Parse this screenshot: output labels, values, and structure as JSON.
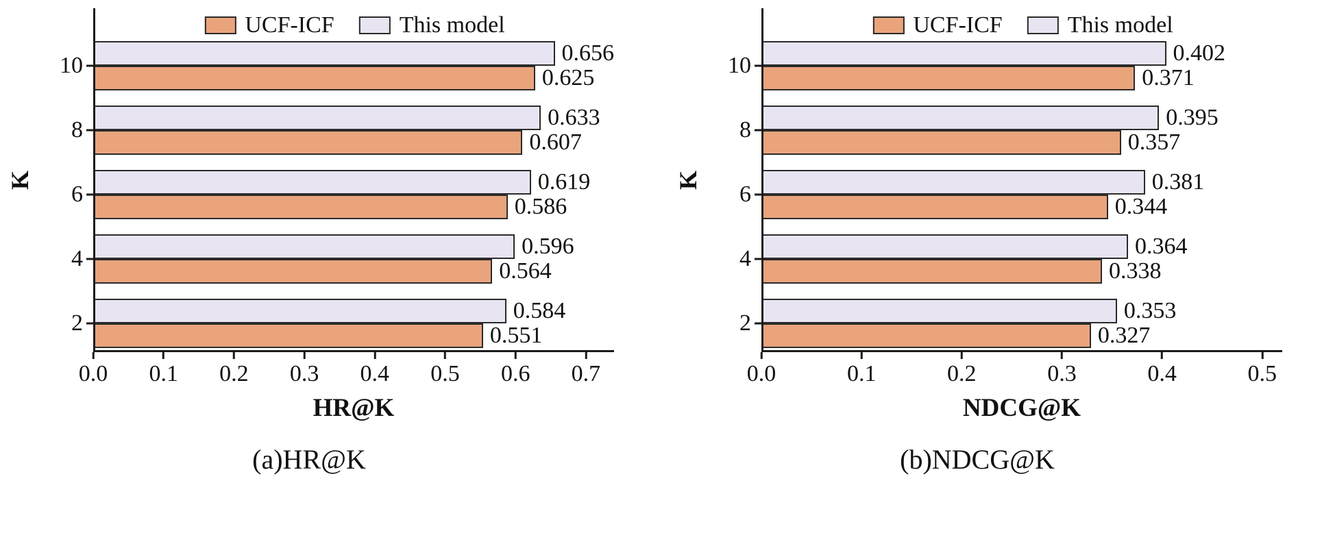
{
  "page": {
    "background": "#ffffff"
  },
  "chart_data": [
    {
      "type": "bar",
      "orientation": "horizontal",
      "title": "",
      "xlabel": "HR@K",
      "ylabel": "K",
      "caption": "(a)HR@K",
      "categories": [
        "2",
        "4",
        "6",
        "8",
        "10"
      ],
      "series": [
        {
          "name": "UCF-ICF",
          "color": "#E9A47C",
          "values": [
            0.551,
            0.564,
            0.586,
            0.607,
            0.625
          ]
        },
        {
          "name": "This model",
          "color": "#E9E4F2",
          "values": [
            0.584,
            0.596,
            0.619,
            0.633,
            0.656
          ]
        }
      ],
      "xlim": [
        0,
        0.74
      ],
      "xticks": [
        0.0,
        0.1,
        0.2,
        0.3,
        0.4,
        0.5,
        0.6,
        0.7
      ],
      "xtick_labels": [
        "0.0",
        "0.1",
        "0.2",
        "0.3",
        "0.4",
        "0.5",
        "0.6",
        "0.7"
      ],
      "grid": false,
      "legend_position": "top center",
      "value_labels": true,
      "bar_border_color": "#2a2a2a",
      "axis_color": "#1a1a1a"
    },
    {
      "type": "bar",
      "orientation": "horizontal",
      "title": "",
      "xlabel": "NDCG@K",
      "ylabel": "K",
      "caption": "(b)NDCG@K",
      "categories": [
        "2",
        "4",
        "6",
        "8",
        "10"
      ],
      "series": [
        {
          "name": "UCF-ICF",
          "color": "#E9A47C",
          "values": [
            0.327,
            0.338,
            0.344,
            0.357,
            0.371
          ]
        },
        {
          "name": "This model",
          "color": "#E9E4F2",
          "values": [
            0.353,
            0.364,
            0.381,
            0.395,
            0.402
          ]
        }
      ],
      "xlim": [
        0,
        0.52
      ],
      "xticks": [
        0.0,
        0.1,
        0.2,
        0.3,
        0.4,
        0.5
      ],
      "xtick_labels": [
        "0.0",
        "0.1",
        "0.2",
        "0.3",
        "0.4",
        "0.5"
      ],
      "grid": false,
      "legend_position": "top center",
      "value_labels": true,
      "bar_border_color": "#2a2a2a",
      "axis_color": "#1a1a1a"
    }
  ]
}
